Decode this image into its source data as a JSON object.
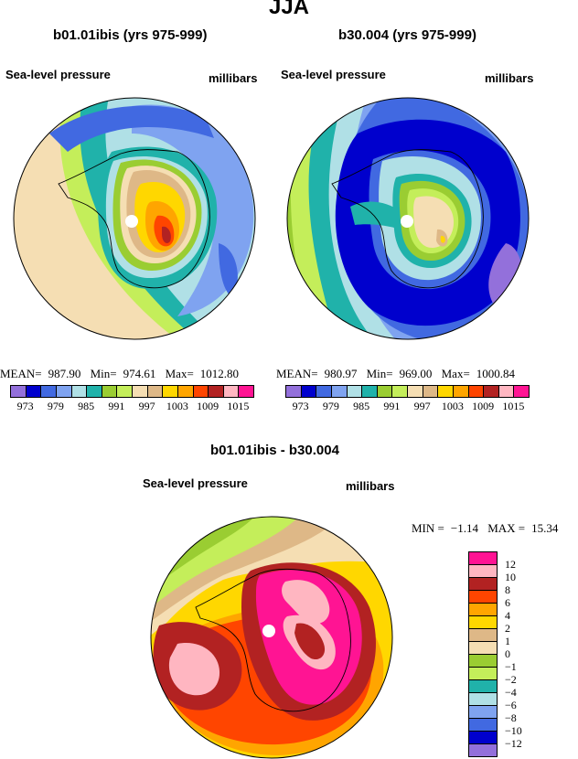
{
  "main_title": "JJA",
  "panels": [
    {
      "title": "b01.01ibis (yrs 975-999)",
      "variable": "Sea-level pressure",
      "units": "millibars",
      "stats": {
        "mean_label": "MEAN=",
        "mean": "987.90",
        "min_label": "Min=",
        "min": "974.61",
        "max_label": "Max=",
        "max": "1012.80"
      }
    },
    {
      "title": "b30.004 (yrs 975-999)",
      "variable": "Sea-level pressure",
      "units": "millibars",
      "stats": {
        "mean_label": "MEAN=",
        "mean": "980.97",
        "min_label": "Min=",
        "min": "969.00",
        "max_label": "Max=",
        "max": "1000.84"
      }
    }
  ],
  "horizontal_colorbar": {
    "colors": [
      "#9370db",
      "#0000cd",
      "#4169e1",
      "#7fa3f0",
      "#b0e0e6",
      "#20b2aa",
      "#9acd32",
      "#c4ee5a",
      "#f5deb3",
      "#deb887",
      "#ffd700",
      "#ffa500",
      "#ff4500",
      "#b22222",
      "#ffb6c1",
      "#ff1493"
    ],
    "tick_labels": [
      "973",
      "979",
      "985",
      "991",
      "997",
      "1003",
      "1009",
      "1015"
    ]
  },
  "difference": {
    "title": "b01.01ibis - b30.004",
    "variable": "Sea-level pressure",
    "units": "millibars",
    "stats": {
      "min_label": "MIN =",
      "min": "−1.14",
      "max_label": "MAX =",
      "max": "15.34"
    },
    "colorbar_colors": [
      "#ff1493",
      "#ffb6c1",
      "#b22222",
      "#ff4500",
      "#ffa500",
      "#ffd700",
      "#deb887",
      "#f5deb3",
      "#9acd32",
      "#c4ee5a",
      "#20b2aa",
      "#b0e0e6",
      "#7fa3f0",
      "#4169e1",
      "#0000cd",
      "#9370db"
    ],
    "levels": [
      "12",
      "10",
      "8",
      "6",
      "4",
      "2",
      "1",
      "0",
      "−1",
      "−2",
      "−4",
      "−6",
      "−8",
      "−10",
      "−12"
    ]
  }
}
